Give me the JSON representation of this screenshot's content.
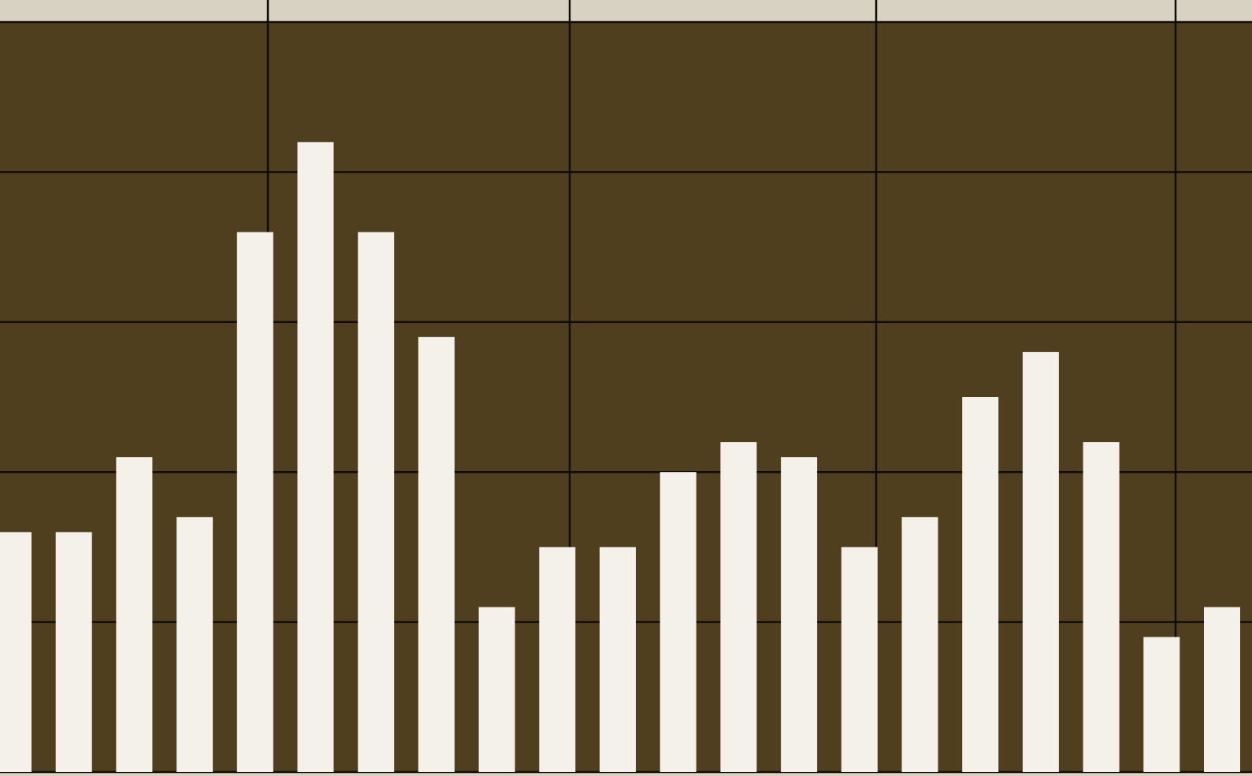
{
  "chart_data": {
    "type": "bar",
    "title": "",
    "xlabel": "",
    "ylabel": "",
    "ylim": [
      0,
      5
    ],
    "grid": true,
    "legend": "none",
    "categories": [
      "",
      "",
      "",
      "",
      "",
      "",
      "",
      "",
      "",
      "",
      "",
      "",
      "",
      "",
      "",
      "",
      "",
      "",
      "",
      "",
      ""
    ],
    "values": [
      1.6,
      1.6,
      2.1,
      1.7,
      3.6,
      4.2,
      3.6,
      2.9,
      1.1,
      1.5,
      1.5,
      2.0,
      2.2,
      2.1,
      1.5,
      1.7,
      2.5,
      2.8,
      2.2,
      0.9,
      1.1
    ],
    "colors": {
      "background": "#4f3f1f",
      "bar": "#f3f1ea",
      "grid": "#0f0b05",
      "paper": "#d8d2c2"
    }
  }
}
